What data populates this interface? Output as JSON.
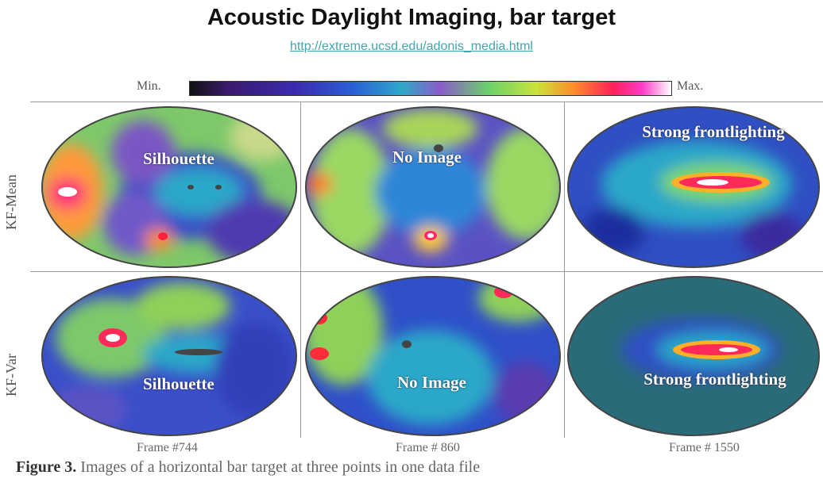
{
  "header": {
    "title": "Acoustic Daylight Imaging, bar target",
    "link": "http://extreme.ucsd.edu/adonis_media.html"
  },
  "colorbar": {
    "min_label": "Min.",
    "max_label": "Max."
  },
  "rows": [
    "KF-Mean",
    "KF-Var"
  ],
  "panels": {
    "mean": [
      "Silhouette",
      "No Image",
      "Strong frontlighting"
    ],
    "var": [
      "Silhouette",
      "No Image",
      "Strong frontlighting"
    ]
  },
  "frames": [
    "Frame #744",
    "Frame # 860",
    "Frame # 1550"
  ],
  "caption": {
    "label": "Figure 3.",
    "text": " Images of a horizontal bar target at three points in one data file"
  },
  "colors": {
    "link": "#3fa7b0",
    "title": "#111111",
    "panel_text": "#ffffff"
  }
}
